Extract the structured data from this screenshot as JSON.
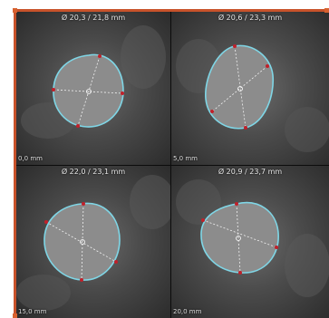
{
  "panels": [
    {
      "measurement": "Ø 20,3 / 21,8 mm",
      "position": "0,0 mm"
    },
    {
      "measurement": "Ø 20,6 / 23,3 mm",
      "position": "5,0 mm"
    },
    {
      "measurement": "Ø 22,0 / 23,1 mm",
      "position": "15,0 mm"
    },
    {
      "measurement": "Ø 20,9 / 23,7 mm",
      "position": "20,0 mm"
    }
  ],
  "colors": {
    "frame": "#c8522a",
    "contour": "#7fd6e6",
    "handle": "#c0202a",
    "diameter_line": "#f2f2f2"
  }
}
